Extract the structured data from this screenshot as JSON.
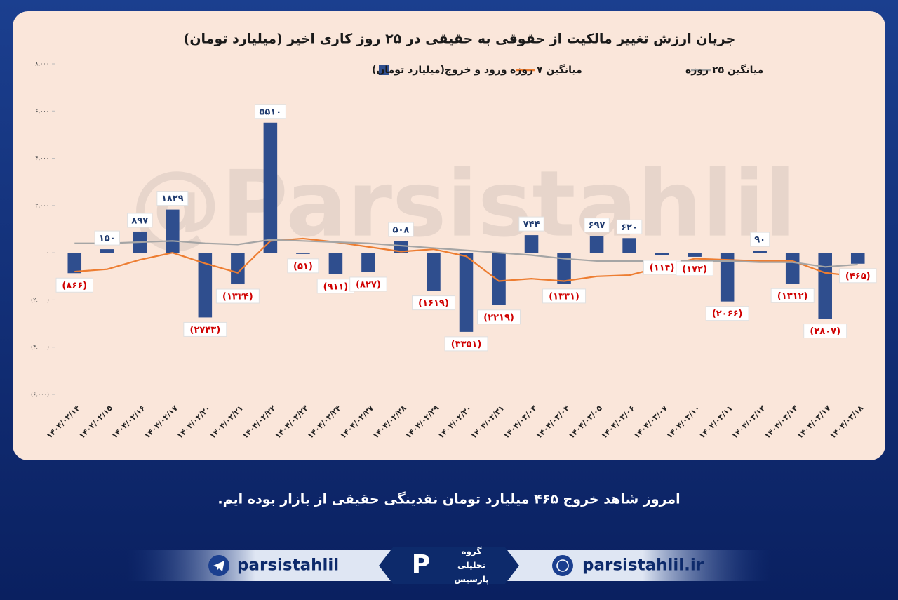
{
  "chart_data": {
    "type": "bar",
    "title": "جریان ارزش تغییر مالکیت از حقوقی به حقیقی در ۲۵ روز کاری اخیر (میلیارد تومان)",
    "watermark": "@Parsistahlil",
    "categories": [
      "۱۴۰۴/۰۲/۱۴",
      "۱۴۰۴/۰۲/۱۵",
      "۱۴۰۴/۰۲/۱۶",
      "۱۴۰۴/۰۲/۱۷",
      "۱۴۰۴/۰۲/۲۰",
      "۱۴۰۴/۰۲/۲۱",
      "۱۴۰۴/۰۲/۲۲",
      "۱۴۰۴/۰۲/۲۳",
      "۱۴۰۴/۰۲/۲۴",
      "۱۴۰۴/۰۲/۲۷",
      "۱۴۰۴/۰۲/۲۸",
      "۱۴۰۴/۰۲/۲۹",
      "۱۴۰۴/۰۲/۳۰",
      "۱۴۰۴/۰۲/۳۱",
      "۱۴۰۴/۰۳/۰۳",
      "۱۴۰۴/۰۳/۰۴",
      "۱۴۰۴/۰۳/۰۵",
      "۱۴۰۴/۰۳/۰۶",
      "۱۴۰۴/۰۳/۰۷",
      "۱۴۰۴/۰۳/۱۰",
      "۱۴۰۴/۰۳/۱۱",
      "۱۴۰۴/۰۳/۱۲",
      "۱۴۰۴/۰۳/۱۳",
      "۱۴۰۴/۰۳/۱۷",
      "۱۴۰۴/۰۳/۱۸"
    ],
    "series": [
      {
        "name": "ورود و خروج(میلیارد تومان)",
        "type": "bar",
        "color": "#2f4e8e",
        "values": [
          -866,
          150,
          897,
          1829,
          -2743,
          -1334,
          5510,
          -51,
          -911,
          -827,
          508,
          -1619,
          -3351,
          -2219,
          744,
          -1331,
          697,
          620,
          -114,
          -172,
          -2066,
          90,
          -1312,
          -2807,
          -465
        ],
        "value_labels": [
          "(۸۶۶)",
          "۱۵۰",
          "۸۹۷",
          "۱۸۲۹",
          "(۲۷۴۳)",
          "(۱۳۳۴)",
          "۵۵۱۰",
          "(۵۱)",
          "(۹۱۱)",
          "(۸۲۷)",
          "۵۰۸",
          "(۱۶۱۹)",
          "(۳۳۵۱)",
          "(۲۲۱۹)",
          "۷۴۴",
          "(۱۳۳۱)",
          "۶۹۷",
          "۶۲۰",
          "(۱۱۴)",
          "(۱۷۲)",
          "(۲۰۶۶)",
          "۹۰",
          "(۱۳۱۲)",
          "(۲۸۰۷)",
          "(۴۶۵)"
        ]
      },
      {
        "name": "میانگین ۷ روزه",
        "type": "line",
        "color": "#ed7d31",
        "values": [
          -800,
          -700,
          -300,
          0,
          -450,
          -850,
          500,
          600,
          450,
          250,
          50,
          150,
          -150,
          -1200,
          -1100,
          -1200,
          -1000,
          -950,
          -600,
          -250,
          -300,
          -350,
          -350,
          -850,
          -1000
        ]
      },
      {
        "name": "میانگین ۲۵ روزه",
        "type": "line",
        "color": "#a5a5a5",
        "values": [
          400,
          400,
          450,
          500,
          400,
          350,
          550,
          500,
          450,
          400,
          300,
          200,
          100,
          0,
          -100,
          -250,
          -350,
          -350,
          -350,
          -350,
          -350,
          -400,
          -400,
          -600,
          -500
        ]
      }
    ],
    "ylim": [
      -6000,
      8000
    ],
    "yticks": [
      {
        "value": -6000,
        "label": "(۶,۰۰۰)"
      },
      {
        "value": -4000,
        "label": "(۴,۰۰۰)"
      },
      {
        "value": -2000,
        "label": "(۲,۰۰۰)"
      },
      {
        "value": 0,
        "label": "۰"
      },
      {
        "value": 2000,
        "label": "۲,۰۰۰"
      },
      {
        "value": 4000,
        "label": "۴,۰۰۰"
      },
      {
        "value": 6000,
        "label": "۶,۰۰۰"
      },
      {
        "value": 8000,
        "label": "۸,۰۰۰"
      }
    ],
    "grid": false
  },
  "footer": {
    "caption": "امروز شاهد خروج ۴۶۵ میلیارد تومان نقدینگی حقیقی از بازار بوده ایم.",
    "telegram": "parsistahlil",
    "website": "parsistahlil.ir",
    "logo": [
      "گروه",
      "تحلیلی",
      "پارسیس"
    ]
  }
}
